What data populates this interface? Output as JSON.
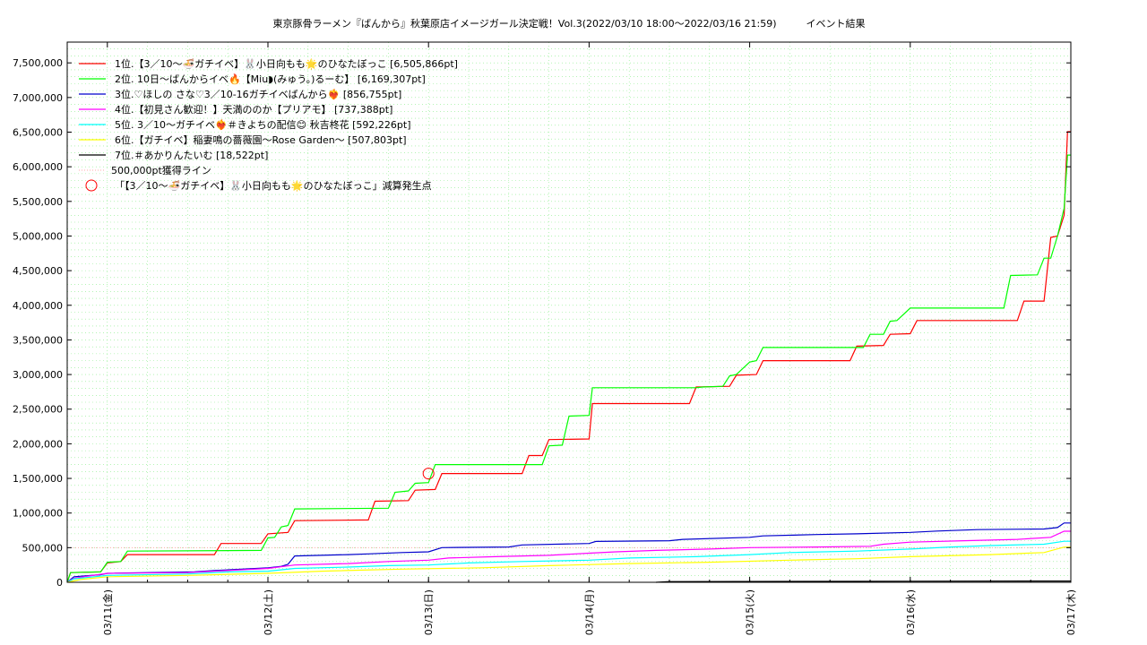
{
  "chart_data": {
    "type": "line",
    "title": "東京豚骨ラーメン『ばんから』秋葉原店イメージガール決定戦！Vol.3(2022/03/10 18:00～2022/03/16 21:59)　　　イベント結果",
    "xlabel": "",
    "ylabel": "",
    "xlim": [
      "2022-03-10 18:00",
      "2022-03-17 00:00"
    ],
    "ylim": [
      0,
      7800000
    ],
    "y_ticks": [
      "0",
      "500,000",
      "1,000,000",
      "1,500,000",
      "2,000,000",
      "2,500,000",
      "3,000,000",
      "3,500,000",
      "4,000,000",
      "4,500,000",
      "5,000,000",
      "5,500,000",
      "6,000,000",
      "6,500,000",
      "7,000,000",
      "7,500,000"
    ],
    "x_ticks": [
      "03/11(金)",
      "03/12(土)",
      "03/13(日)",
      "03/14(月)",
      "03/15(火)",
      "03/16(水)",
      "03/17(木)"
    ],
    "grid": true,
    "legend_position": "top-left",
    "series": [
      {
        "name": "1位.【3／10〜🍜ガチイベ】🐰小日向もも🌟のひなたぼっこ [6,505,866pt]",
        "color": "#ff0000",
        "points": [
          [
            "2022-03-10 18:00",
            0
          ],
          [
            "2022-03-10 18:30",
            140000
          ],
          [
            "2022-03-10 23:00",
            150000
          ],
          [
            "2022-03-11 00:00",
            280000
          ],
          [
            "2022-03-11 02:00",
            300000
          ],
          [
            "2022-03-11 03:00",
            400000
          ],
          [
            "2022-03-11 16:00",
            400000
          ],
          [
            "2022-03-11 17:00",
            560000
          ],
          [
            "2022-03-11 23:00",
            560000
          ],
          [
            "2022-03-12 00:00",
            700000
          ],
          [
            "2022-03-12 03:00",
            720000
          ],
          [
            "2022-03-12 04:00",
            890000
          ],
          [
            "2022-03-12 15:00",
            900000
          ],
          [
            "2022-03-12 16:00",
            1170000
          ],
          [
            "2022-03-12 21:00",
            1180000
          ],
          [
            "2022-03-12 22:00",
            1330000
          ],
          [
            "2022-03-13 01:00",
            1340000
          ],
          [
            "2022-03-13 02:00",
            1570000
          ],
          [
            "2022-03-13 14:00",
            1570000
          ],
          [
            "2022-03-13 15:00",
            1830000
          ],
          [
            "2022-03-13 17:00",
            1830000
          ],
          [
            "2022-03-13 18:00",
            2060000
          ],
          [
            "2022-03-14 00:00",
            2070000
          ],
          [
            "2022-03-14 00:30",
            2580000
          ],
          [
            "2022-03-14 15:00",
            2580000
          ],
          [
            "2022-03-14 16:00",
            2820000
          ],
          [
            "2022-03-14 21:00",
            2830000
          ],
          [
            "2022-03-14 22:00",
            2990000
          ],
          [
            "2022-03-15 01:00",
            3000000
          ],
          [
            "2022-03-15 02:00",
            3200000
          ],
          [
            "2022-03-15 15:00",
            3200000
          ],
          [
            "2022-03-15 16:00",
            3410000
          ],
          [
            "2022-03-15 20:00",
            3420000
          ],
          [
            "2022-03-15 21:00",
            3580000
          ],
          [
            "2022-03-16 00:00",
            3590000
          ],
          [
            "2022-03-16 01:00",
            3780000
          ],
          [
            "2022-03-16 16:00",
            3780000
          ],
          [
            "2022-03-16 17:00",
            4060000
          ],
          [
            "2022-03-16 20:00",
            4060000
          ],
          [
            "2022-03-16 21:00",
            4980000
          ],
          [
            "2022-03-16 22:00",
            5000000
          ],
          [
            "2022-03-16 23:00",
            5300000
          ],
          [
            "2022-03-16 23:30",
            6505866
          ],
          [
            "2022-03-17 00:00",
            6505866
          ]
        ]
      },
      {
        "name": "2位. 10日〜ばんからイベ🔥【Miu◗(みゅう。)るーむ】 [6,169,307pt]",
        "color": "#00ff00",
        "points": [
          [
            "2022-03-10 18:00",
            0
          ],
          [
            "2022-03-10 18:30",
            140000
          ],
          [
            "2022-03-10 23:00",
            150000
          ],
          [
            "2022-03-11 00:00",
            290000
          ],
          [
            "2022-03-11 02:00",
            300000
          ],
          [
            "2022-03-11 03:00",
            450000
          ],
          [
            "2022-03-11 23:00",
            460000
          ],
          [
            "2022-03-12 00:00",
            640000
          ],
          [
            "2022-03-12 01:00",
            650000
          ],
          [
            "2022-03-12 02:00",
            800000
          ],
          [
            "2022-03-12 03:00",
            820000
          ],
          [
            "2022-03-12 04:00",
            1060000
          ],
          [
            "2022-03-12 18:00",
            1070000
          ],
          [
            "2022-03-12 19:00",
            1300000
          ],
          [
            "2022-03-12 21:00",
            1320000
          ],
          [
            "2022-03-12 22:00",
            1430000
          ],
          [
            "2022-03-13 00:00",
            1440000
          ],
          [
            "2022-03-13 01:00",
            1700000
          ],
          [
            "2022-03-13 17:00",
            1700000
          ],
          [
            "2022-03-13 18:00",
            1970000
          ],
          [
            "2022-03-13 20:00",
            1980000
          ],
          [
            "2022-03-13 21:00",
            2400000
          ],
          [
            "2022-03-14 00:00",
            2410000
          ],
          [
            "2022-03-14 00:30",
            2810000
          ],
          [
            "2022-03-14 16:00",
            2810000
          ],
          [
            "2022-03-14 17:00",
            2820000
          ],
          [
            "2022-03-14 20:00",
            2830000
          ],
          [
            "2022-03-14 21:00",
            2980000
          ],
          [
            "2022-03-14 22:00",
            3000000
          ],
          [
            "2022-03-15 00:00",
            3180000
          ],
          [
            "2022-03-15 01:00",
            3200000
          ],
          [
            "2022-03-15 02:00",
            3390000
          ],
          [
            "2022-03-15 17:00",
            3390000
          ],
          [
            "2022-03-15 18:00",
            3580000
          ],
          [
            "2022-03-15 20:00",
            3580000
          ],
          [
            "2022-03-15 21:00",
            3770000
          ],
          [
            "2022-03-15 22:00",
            3780000
          ],
          [
            "2022-03-16 00:00",
            3960000
          ],
          [
            "2022-03-16 14:00",
            3960000
          ],
          [
            "2022-03-16 15:00",
            4430000
          ],
          [
            "2022-03-16 19:00",
            4440000
          ],
          [
            "2022-03-16 20:00",
            4680000
          ],
          [
            "2022-03-16 21:00",
            4680000
          ],
          [
            "2022-03-16 22:00",
            5000000
          ],
          [
            "2022-03-16 23:00",
            5400000
          ],
          [
            "2022-03-16 23:30",
            6169307
          ],
          [
            "2022-03-17 00:00",
            6169307
          ]
        ]
      },
      {
        "name": "3位.♡ほしの さな♡3／10-16ガチイベばんから❤️‍🔥 [856,755pt]",
        "color": "#0000cc",
        "points": [
          [
            "2022-03-10 18:00",
            0
          ],
          [
            "2022-03-10 19:00",
            80000
          ],
          [
            "2022-03-10 23:00",
            110000
          ],
          [
            "2022-03-11 00:00",
            130000
          ],
          [
            "2022-03-11 13:00",
            150000
          ],
          [
            "2022-03-11 16:00",
            170000
          ],
          [
            "2022-03-11 20:00",
            190000
          ],
          [
            "2022-03-12 00:00",
            210000
          ],
          [
            "2022-03-12 02:00",
            230000
          ],
          [
            "2022-03-12 03:00",
            260000
          ],
          [
            "2022-03-12 04:00",
            380000
          ],
          [
            "2022-03-12 12:00",
            400000
          ],
          [
            "2022-03-12 15:00",
            410000
          ],
          [
            "2022-03-12 20:00",
            430000
          ],
          [
            "2022-03-13 00:00",
            440000
          ],
          [
            "2022-03-13 02:00",
            500000
          ],
          [
            "2022-03-13 12:00",
            510000
          ],
          [
            "2022-03-13 14:00",
            540000
          ],
          [
            "2022-03-14 00:00",
            560000
          ],
          [
            "2022-03-14 01:00",
            590000
          ],
          [
            "2022-03-14 12:00",
            600000
          ],
          [
            "2022-03-14 14:00",
            620000
          ],
          [
            "2022-03-15 00:00",
            650000
          ],
          [
            "2022-03-15 02:00",
            670000
          ],
          [
            "2022-03-15 10:00",
            690000
          ],
          [
            "2022-03-15 16:00",
            700000
          ],
          [
            "2022-03-16 00:00",
            720000
          ],
          [
            "2022-03-16 04:00",
            740000
          ],
          [
            "2022-03-16 10:00",
            760000
          ],
          [
            "2022-03-16 20:00",
            770000
          ],
          [
            "2022-03-16 22:00",
            790000
          ],
          [
            "2022-03-16 23:00",
            856755
          ],
          [
            "2022-03-17 00:00",
            856755
          ]
        ]
      },
      {
        "name": "4位.【初見さん歓迎！】天満ののか【プリアモ】 [737,388pt]",
        "color": "#ff00ff",
        "points": [
          [
            "2022-03-10 18:00",
            0
          ],
          [
            "2022-03-10 19:00",
            60000
          ],
          [
            "2022-03-11 00:00",
            130000
          ],
          [
            "2022-03-11 12:00",
            140000
          ],
          [
            "2022-03-11 18:00",
            170000
          ],
          [
            "2022-03-12 00:00",
            200000
          ],
          [
            "2022-03-12 04:00",
            250000
          ],
          [
            "2022-03-12 12:00",
            270000
          ],
          [
            "2022-03-12 18:00",
            300000
          ],
          [
            "2022-03-13 00:00",
            320000
          ],
          [
            "2022-03-13 03:00",
            350000
          ],
          [
            "2022-03-13 10:00",
            370000
          ],
          [
            "2022-03-13 18:00",
            390000
          ],
          [
            "2022-03-14 00:00",
            420000
          ],
          [
            "2022-03-14 04:00",
            440000
          ],
          [
            "2022-03-14 10:00",
            460000
          ],
          [
            "2022-03-14 18:00",
            480000
          ],
          [
            "2022-03-15 00:00",
            500000
          ],
          [
            "2022-03-15 10:00",
            510000
          ],
          [
            "2022-03-15 18:00",
            520000
          ],
          [
            "2022-03-15 20:00",
            550000
          ],
          [
            "2022-03-16 00:00",
            580000
          ],
          [
            "2022-03-16 08:00",
            600000
          ],
          [
            "2022-03-16 16:00",
            620000
          ],
          [
            "2022-03-16 21:00",
            650000
          ],
          [
            "2022-03-16 23:00",
            737388
          ],
          [
            "2022-03-17 00:00",
            737388
          ]
        ]
      },
      {
        "name": "5位. 3／10〜ガチイベ❤️‍🔥＃きよちの配信😊 秋吉柊花 [592,226pt]",
        "color": "#00ffff",
        "points": [
          [
            "2022-03-10 18:00",
            0
          ],
          [
            "2022-03-10 19:00",
            50000
          ],
          [
            "2022-03-11 00:00",
            100000
          ],
          [
            "2022-03-11 12:00",
            120000
          ],
          [
            "2022-03-11 18:00",
            150000
          ],
          [
            "2022-03-12 00:00",
            160000
          ],
          [
            "2022-03-12 04:00",
            200000
          ],
          [
            "2022-03-12 12:00",
            220000
          ],
          [
            "2022-03-12 18:00",
            240000
          ],
          [
            "2022-03-13 00:00",
            250000
          ],
          [
            "2022-03-13 06:00",
            280000
          ],
          [
            "2022-03-13 14:00",
            300000
          ],
          [
            "2022-03-14 00:00",
            320000
          ],
          [
            "2022-03-14 06:00",
            350000
          ],
          [
            "2022-03-14 16:00",
            370000
          ],
          [
            "2022-03-15 00:00",
            400000
          ],
          [
            "2022-03-15 06:00",
            430000
          ],
          [
            "2022-03-15 16:00",
            450000
          ],
          [
            "2022-03-16 00:00",
            480000
          ],
          [
            "2022-03-16 06:00",
            510000
          ],
          [
            "2022-03-16 12:00",
            530000
          ],
          [
            "2022-03-16 20:00",
            550000
          ],
          [
            "2022-03-16 23:00",
            592226
          ],
          [
            "2022-03-17 00:00",
            592226
          ]
        ]
      },
      {
        "name": "6位.【ガチイベ】稲妻鳴の薔薇園〜Rose Garden〜 [507,803pt]",
        "color": "#ffff00",
        "points": [
          [
            "2022-03-10 18:00",
            0
          ],
          [
            "2022-03-10 20:00",
            40000
          ],
          [
            "2022-03-11 00:00",
            80000
          ],
          [
            "2022-03-11 12:00",
            100000
          ],
          [
            "2022-03-12 00:00",
            130000
          ],
          [
            "2022-03-12 08:00",
            160000
          ],
          [
            "2022-03-12 20:00",
            190000
          ],
          [
            "2022-03-13 08:00",
            210000
          ],
          [
            "2022-03-13 18:00",
            240000
          ],
          [
            "2022-03-14 06:00",
            270000
          ],
          [
            "2022-03-14 18:00",
            290000
          ],
          [
            "2022-03-15 06:00",
            320000
          ],
          [
            "2022-03-15 16:00",
            340000
          ],
          [
            "2022-03-16 00:00",
            370000
          ],
          [
            "2022-03-16 12:00",
            400000
          ],
          [
            "2022-03-16 20:00",
            430000
          ],
          [
            "2022-03-16 23:00",
            507803
          ],
          [
            "2022-03-17 00:00",
            507803
          ]
        ]
      },
      {
        "name": "7位.＃あかりんたいむ [18,522pt]",
        "color": "#000000",
        "points": [
          [
            "2022-03-14 10:00",
            0
          ],
          [
            "2022-03-14 12:00",
            10000
          ],
          [
            "2022-03-16 00:00",
            15000
          ],
          [
            "2022-03-16 23:00",
            18522
          ],
          [
            "2022-03-17 00:00",
            18522
          ]
        ]
      }
    ],
    "reference_line": {
      "name": "500,000pt獲得ライン",
      "value": 500000,
      "color": "#ffaaaa"
    },
    "annotation": {
      "name": "「【3／10〜🍜ガチイベ】🐰小日向もも🌟のひなたぼっこ」減算発生点",
      "x": "2022-03-13 00:00",
      "y": 1570000,
      "color": "#ff0000"
    }
  }
}
